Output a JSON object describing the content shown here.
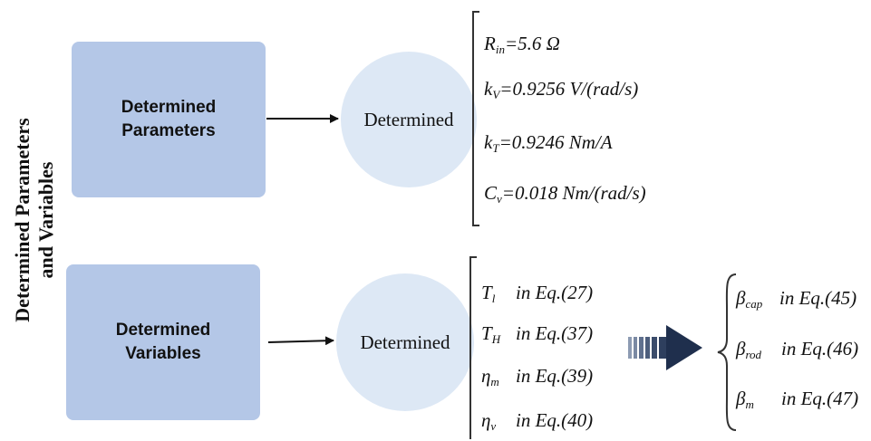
{
  "side_title": [
    "Determined Parameters",
    "and Variables"
  ],
  "param_box": [
    "Determined",
    "Parameters"
  ],
  "var_box": [
    "Determined",
    "Variables"
  ],
  "param_circle": "Determined",
  "var_circle": "Determined",
  "parameters": [
    {
      "sym": "R",
      "sub": "in",
      "text": "=5.6 Ω"
    },
    {
      "sym": "k",
      "sub": "V",
      "text": "=0.9256 V/(rad/s)"
    },
    {
      "sym": "k",
      "sub": "T",
      "text": "=0.9246 Nm/A"
    },
    {
      "sym": "C",
      "sub": "v",
      "text": "=0.018 Nm/(rad/s)"
    }
  ],
  "variables": [
    {
      "sym": "T",
      "sub": "l",
      "ref": "in Eq.(27)"
    },
    {
      "sym": "T",
      "sub": "H",
      "ref": "in Eq.(37)"
    },
    {
      "sym": "η",
      "sub": "m",
      "ref": "in Eq.(39)"
    },
    {
      "sym": "η",
      "sub": "v",
      "ref": "in Eq.(40)"
    }
  ],
  "betas": [
    {
      "sym": "β",
      "sub": "cap",
      "ref": "in Eq.(45)"
    },
    {
      "sym": "β",
      "sub": "rod",
      "ref": "in Eq.(46)"
    },
    {
      "sym": "β",
      "sub": "m",
      "ref": "in Eq.(47)"
    }
  ]
}
